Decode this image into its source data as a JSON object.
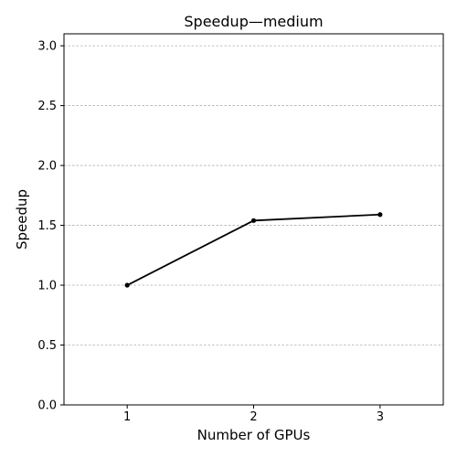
{
  "chart_data": {
    "type": "line",
    "title": "Speedup—medium",
    "xlabel": "Number of GPUs",
    "ylabel": "Speedup",
    "x": [
      1,
      2,
      3
    ],
    "x_tick_labels": [
      "1",
      "2",
      "3"
    ],
    "xlim": [
      0.5,
      3.5
    ],
    "ylim": [
      0.0,
      3.1
    ],
    "y_ticks": [
      0.0,
      0.5,
      1.0,
      1.5,
      2.0,
      2.5,
      3.0
    ],
    "y_tick_labels": [
      "0.0",
      "0.5",
      "1.0",
      "1.5",
      "2.0",
      "2.5",
      "3.0"
    ],
    "grid": "y-dashed",
    "series": [
      {
        "values": [
          1.0,
          1.54,
          1.59
        ],
        "color": "#000000"
      }
    ]
  }
}
